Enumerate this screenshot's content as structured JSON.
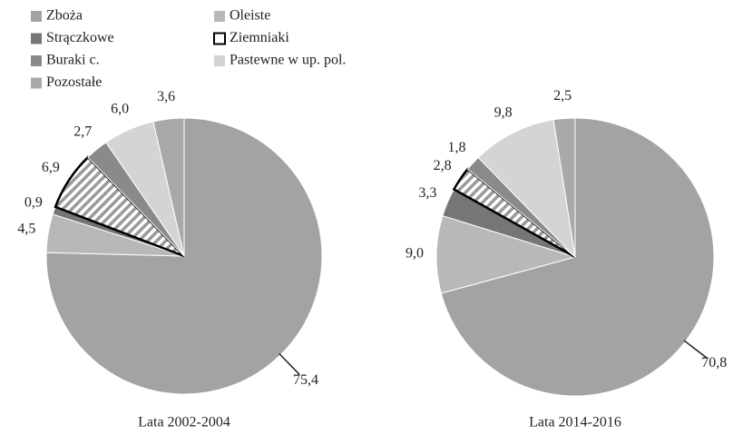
{
  "chart_data": [
    {
      "type": "pie",
      "title": "Lata 2002-2004",
      "categories": [
        "Zboża",
        "Oleiste",
        "Strączkowe",
        "Ziemniaki",
        "Buraki c.",
        "Pastewne w up. pol.",
        "Pozostałe"
      ],
      "values": [
        75.4,
        4.5,
        0.9,
        6.9,
        2.7,
        6.0,
        3.6
      ],
      "value_labels": [
        "75,4",
        "4,5",
        "0,9",
        "6,9",
        "2,7",
        "6,0",
        "3,6"
      ],
      "colors": [
        "#a3a3a3",
        "#b8b8b8",
        "#767676",
        "#ffffff",
        "#8a8a8a",
        "#d4d4d4",
        "#a9a9a9"
      ],
      "hatched": [
        3
      ]
    },
    {
      "type": "pie",
      "title": "Lata 2014-2016",
      "categories": [
        "Zboża",
        "Oleiste",
        "Strączkowe",
        "Ziemniaki",
        "Buraki c.",
        "Pastewne w up. pol.",
        "Pozostałe"
      ],
      "values": [
        70.8,
        9.0,
        3.3,
        2.8,
        1.8,
        9.8,
        2.5
      ],
      "value_labels": [
        "70,8",
        "9,0",
        "3,3",
        "2,8",
        "1,8",
        "9,8",
        "2,5"
      ],
      "colors": [
        "#a3a3a3",
        "#b8b8b8",
        "#767676",
        "#ffffff",
        "#8a8a8a",
        "#d4d4d4",
        "#a9a9a9"
      ],
      "hatched": [
        3
      ]
    }
  ]
}
